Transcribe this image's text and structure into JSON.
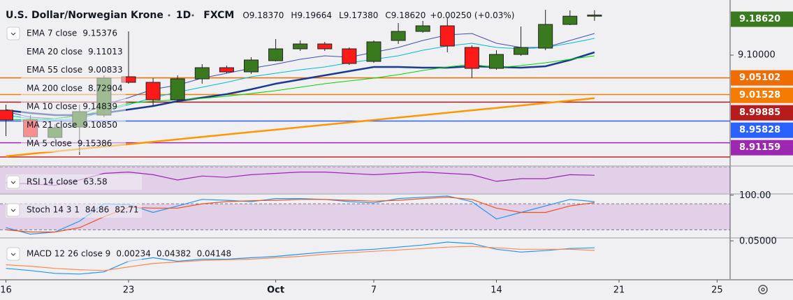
{
  "header": {
    "symbol": "U.S. Dollar/Norwegian Krone",
    "interval": "1D",
    "source": "FXCM",
    "ohlc": [
      {
        "key": "O",
        "value": "9.18370"
      },
      {
        "key": "H",
        "value": "9.19664"
      },
      {
        "key": "L",
        "value": "9.17380"
      },
      {
        "key": "C",
        "value": "9.18620"
      }
    ],
    "change": "+0.00250 (+0.03%)"
  },
  "chart_data": [
    {
      "type": "candlestick",
      "categories": [
        "16",
        null,
        null,
        null,
        null,
        "23",
        null,
        null,
        null,
        null,
        null,
        "Oct",
        null,
        null,
        null,
        "7",
        null,
        null,
        null,
        null,
        "14",
        null,
        null,
        null,
        null,
        "21",
        null,
        null,
        null,
        "25"
      ],
      "open": [
        8.9815,
        8.9605,
        8.923,
        8.9455,
        8.971,
        9.0535,
        9.0415,
        9.004,
        9.049,
        9.073,
        9.064,
        9.088,
        9.1135,
        9.124,
        9.1135,
        9.0865,
        9.1315,
        9.151,
        9.163,
        9.1165,
        9.0715,
        9.1015,
        9.115,
        9.166,
        9.1837,
        null,
        null,
        null,
        null,
        null
      ],
      "high": [
        8.9935,
        8.971,
        8.9515,
        8.9935,
        9.0565,
        9.151,
        9.0505,
        9.0565,
        9.0805,
        9.0775,
        9.0955,
        9.1345,
        9.1315,
        9.1285,
        9.1165,
        9.1315,
        9.169,
        9.1735,
        9.181,
        9.121,
        9.1105,
        9.1615,
        9.1975,
        9.196,
        9.19664,
        null,
        null,
        null,
        null,
        null
      ],
      "low": [
        8.926,
        8.9185,
        8.9185,
        8.8855,
        8.9665,
        9.0385,
        8.9905,
        8.9995,
        9.0385,
        9.061,
        9.0595,
        9.0865,
        9.109,
        9.109,
        9.079,
        9.0835,
        9.124,
        9.148,
        9.106,
        9.0505,
        9.0685,
        9.0985,
        9.1105,
        9.1645,
        9.1738,
        null,
        null,
        null,
        null,
        null
      ],
      "close": [
        8.9605,
        8.9245,
        8.944,
        8.9785,
        9.0505,
        9.0415,
        9.004,
        9.049,
        9.073,
        9.064,
        9.0895,
        9.1135,
        9.124,
        9.1135,
        9.082,
        9.1285,
        9.151,
        9.163,
        9.1195,
        9.0715,
        9.1015,
        9.1165,
        9.166,
        9.1837,
        9.1862,
        null,
        null,
        null,
        null,
        null
      ],
      "up_color": "#3a7a1f",
      "down_color": "#ff1a1a",
      "ylim": [
        8.863,
        9.2185
      ],
      "yticks": [
        {
          "value": 9.1,
          "label": "9.10000"
        }
      ],
      "last_price": {
        "value": 9.1862,
        "label": "9.18620",
        "color": "#3a7a1f"
      },
      "levels": [
        {
          "value": 9.05102,
          "label": "9.05102",
          "color": "#ef6c00"
        },
        {
          "value": 9.01528,
          "label": "9.01528",
          "color": "#f57c00"
        },
        {
          "value": 8.99885,
          "label": "8.99885",
          "color": "#b71c1c"
        },
        {
          "value": 8.95828,
          "label": "8.95828",
          "color": "#2962ff"
        },
        {
          "value": 8.91159,
          "label": "8.91159",
          "color": "#9c27b0"
        },
        {
          "value": 8.881,
          "color": "#c62828"
        }
      ],
      "series": [
        {
          "name": "EMA 7 close",
          "value_label": "9.15376",
          "color": "#3f51b5",
          "values": [
            8.9785,
            8.9665,
            8.9635,
            8.971,
            8.9935,
            9.0085,
            9.0265,
            9.0355,
            9.0505,
            9.061,
            9.0715,
            9.0805,
            9.091,
            9.0985,
            9.0955,
            9.106,
            9.1165,
            9.1315,
            9.1435,
            9.1465,
            9.1255,
            9.1165,
            9.1165,
            9.1315,
            9.1465,
            null,
            null,
            null,
            null,
            null
          ]
        },
        {
          "name": "EMA 20 close",
          "value_label": "9.11013",
          "color": "#1a3a8f",
          "values": [
            8.9815,
            8.9755,
            8.971,
            8.971,
            8.9755,
            8.983,
            8.9905,
            9.001,
            9.0085,
            9.016,
            9.0265,
            9.0385,
            9.0475,
            9.0565,
            9.0655,
            9.0745,
            9.0745,
            9.073,
            9.073,
            9.076,
            9.0745,
            9.073,
            9.076,
            9.0895,
            9.106,
            null,
            null,
            null,
            null,
            null
          ]
        },
        {
          "name": "EMA 55 close",
          "value_label": "9.00833",
          "color": "#ff9800",
          "values": [
            8.8825,
            8.8877,
            8.8929,
            8.8981,
            8.9033,
            8.9085,
            8.9137,
            8.9189,
            8.9241,
            8.9293,
            8.9345,
            8.9397,
            8.9449,
            8.9501,
            8.9553,
            8.9605,
            8.9657,
            8.9709,
            8.9761,
            8.9813,
            8.9865,
            8.9917,
            8.9969,
            9.0021,
            9.0073,
            null,
            null,
            null,
            null,
            null
          ]
        },
        {
          "name": "MA 200 close",
          "value_label": "8.72904",
          "color": "#b71c1c"
        },
        {
          "name": "MA 10 close",
          "value_label": "9.14839",
          "color": "#00bcd4",
          "values": [
            8.971,
            8.9635,
            8.9605,
            8.9635,
            8.9785,
            8.9935,
            9.0085,
            9.0205,
            9.031,
            9.0415,
            9.0535,
            9.061,
            9.0685,
            9.0745,
            9.0835,
            9.091,
            9.0985,
            9.1105,
            9.1195,
            9.1255,
            9.1165,
            9.1135,
            9.1165,
            9.1255,
            9.136,
            null,
            null,
            null,
            null,
            null
          ]
        },
        {
          "name": "MA 21 close",
          "value_label": "9.10850",
          "color": "#00d600",
          "values": [
            8.9605,
            8.962,
            8.9635,
            8.9695,
            8.9815,
            8.9965,
            9.001,
            9.004,
            9.007,
            9.0115,
            9.0175,
            9.0235,
            9.031,
            9.0385,
            9.0445,
            9.0505,
            9.058,
            9.067,
            9.0745,
            9.0805,
            9.073,
            9.0775,
            9.0835,
            9.091,
            9.0985,
            null,
            null,
            null,
            null,
            null
          ]
        },
        {
          "name": "MA 5 close",
          "value_label": "9.15386",
          "color": "#7e57c2"
        }
      ]
    },
    {
      "type": "line",
      "title": "RSI 14 close",
      "ylim": [
        50,
        70
      ],
      "band": [
        30,
        70
      ],
      "band_color": "#9c27b0",
      "series": [
        {
          "value_label": "63.58",
          "color": "#9c27b0",
          "values": [
            58,
            57,
            56,
            60,
            65,
            66,
            64,
            60,
            63,
            62,
            64,
            65,
            66,
            66,
            65,
            64,
            65,
            66,
            65,
            64,
            59,
            61,
            61,
            64,
            63.58,
            null,
            null,
            null,
            null,
            null
          ]
        }
      ]
    },
    {
      "type": "line",
      "title": "Stoch 14 3 1",
      "ylim": [
        3,
        101
      ],
      "band": [
        20,
        80
      ],
      "band_color": "#9c27b0",
      "yticks": [
        {
          "value": 100,
          "label": "100.00"
        }
      ],
      "series": [
        {
          "value_label": "84.86",
          "color": "#2196f3",
          "values": [
            25,
            10,
            15,
            40,
            80,
            78,
            60,
            75,
            90,
            88,
            85,
            92,
            92,
            90,
            85,
            82,
            92,
            95,
            98,
            85,
            45,
            60,
            75,
            90,
            84.86,
            null,
            null,
            null,
            null,
            null
          ]
        },
        {
          "value_label": "82.71",
          "color": "#f4511e",
          "values": [
            20,
            15,
            15,
            25,
            50,
            72,
            70,
            70,
            80,
            85,
            87,
            88,
            90,
            90,
            88,
            86,
            88,
            92,
            95,
            90,
            70,
            60,
            60,
            75,
            82.71,
            null,
            null,
            null,
            null,
            null
          ]
        }
      ]
    },
    {
      "type": "line",
      "title": "MACD 12 26 close 9",
      "ylim": [
        0.016,
        0.052
      ],
      "yticks": [
        {
          "value": 0.05,
          "label": "0.05000"
        }
      ],
      "series": [
        {
          "value_label": "0.00234",
          "color": "#26a69a"
        },
        {
          "value_label": "0.04382",
          "color": "#2196f3",
          "values": [
            0.0255,
            0.0236,
            0.0211,
            0.0205,
            0.0224,
            0.0318,
            0.035,
            0.0318,
            0.0337,
            0.0337,
            0.035,
            0.0362,
            0.0381,
            0.04,
            0.0413,
            0.0425,
            0.0444,
            0.0463,
            0.0489,
            0.0476,
            0.0425,
            0.04,
            0.0413,
            0.0432,
            0.04382,
            null,
            null,
            null,
            null,
            null
          ]
        },
        {
          "value_label": "0.04148",
          "color": "#ff8a50",
          "values": [
            0.0287,
            0.0274,
            0.0255,
            0.0243,
            0.0236,
            0.0268,
            0.0299,
            0.0312,
            0.0325,
            0.0331,
            0.0337,
            0.035,
            0.0362,
            0.0381,
            0.0394,
            0.0407,
            0.0419,
            0.0432,
            0.0444,
            0.0451,
            0.0438,
            0.0425,
            0.0425,
            0.0425,
            0.04148,
            null,
            null,
            null,
            null,
            null
          ]
        }
      ]
    }
  ]
}
